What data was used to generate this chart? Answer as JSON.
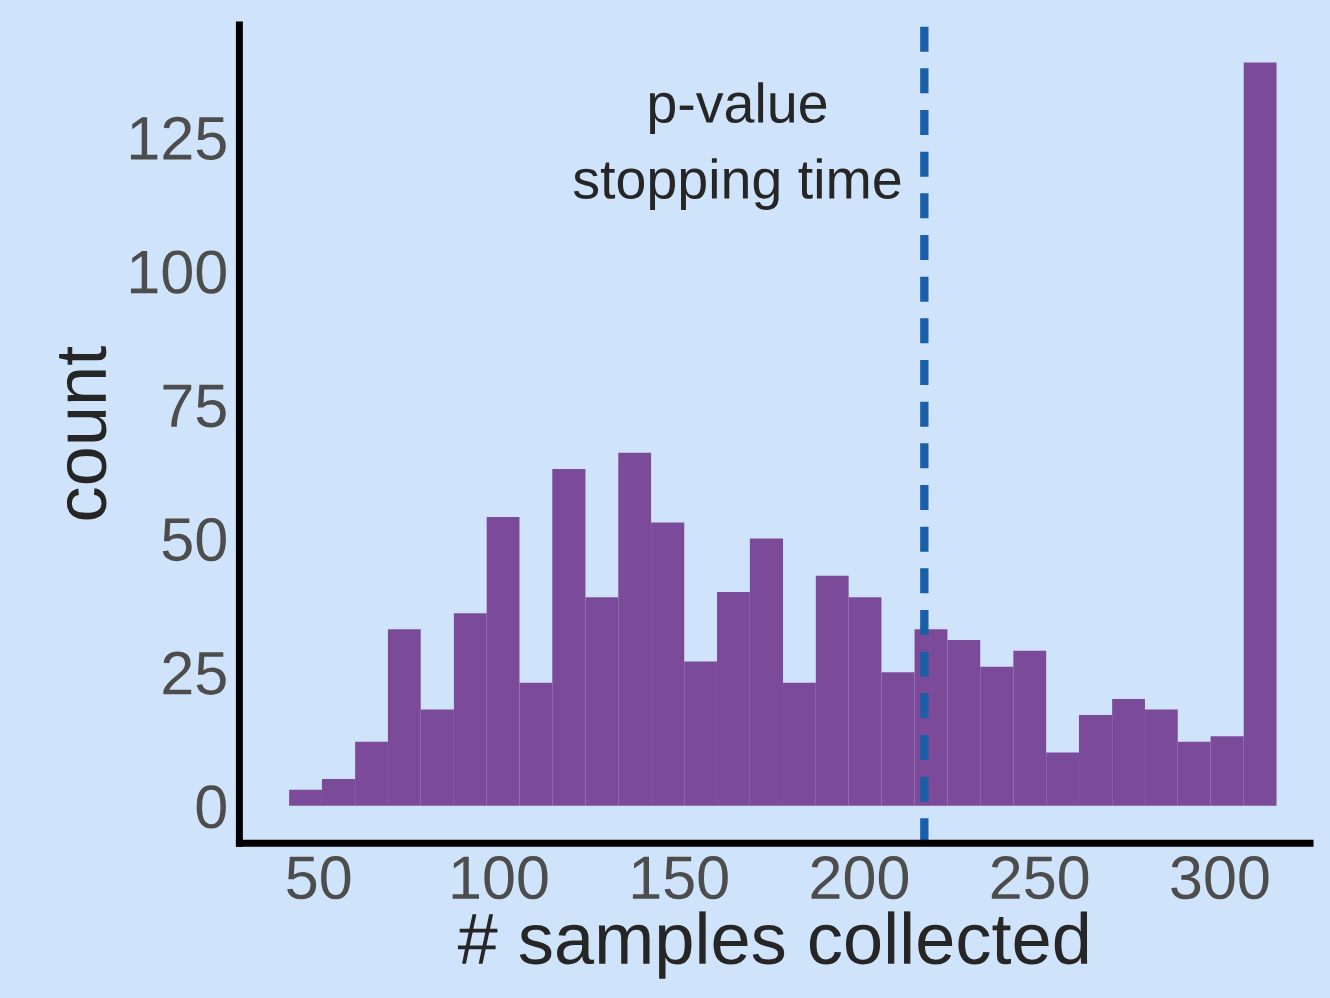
{
  "chart_data": {
    "type": "histogram",
    "xlabel": "# samples collected",
    "ylabel": "count",
    "bins": [
      41.8,
      50.9,
      60.1,
      69.2,
      78.3,
      87.5,
      96.6,
      105.7,
      114.8,
      124.0,
      133.1,
      142.2,
      151.4,
      160.5,
      169.6,
      178.8,
      187.9,
      197.0,
      206.1,
      215.3,
      224.4,
      233.5,
      242.7,
      251.8,
      260.9,
      270.1,
      279.2,
      288.3,
      297.4,
      306.6,
      315.7
    ],
    "values": [
      3,
      5,
      12,
      33,
      18,
      36,
      54,
      23,
      63,
      39,
      66,
      53,
      27,
      40,
      50,
      23,
      43,
      39,
      25,
      33,
      31,
      26,
      29,
      10,
      17,
      20,
      18,
      12,
      13,
      139
    ],
    "color": "#7b4b9a",
    "xlim": [
      28,
      325
    ],
    "ylim": [
      -7,
      146
    ],
    "xticks": [
      50,
      100,
      150,
      200,
      250,
      300
    ],
    "yticks": [
      0,
      25,
      50,
      75,
      100,
      125
    ],
    "grid": false,
    "legend": false,
    "ref_lines": [
      {
        "axis": "x",
        "value": 218,
        "label": "p-value\nstopping time",
        "color": "#1a5fa8",
        "line_style": "dashed"
      }
    ]
  }
}
